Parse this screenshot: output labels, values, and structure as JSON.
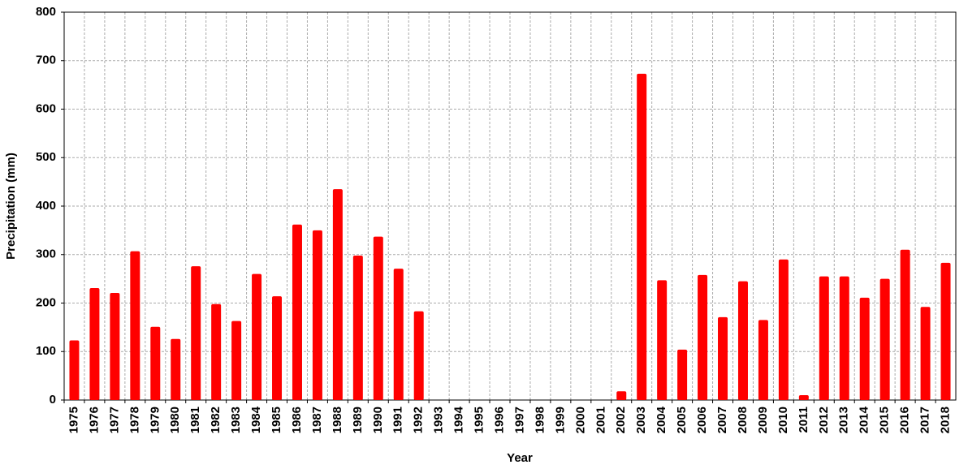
{
  "chart_data": {
    "type": "bar",
    "x_label": "Year",
    "y_label": "Precipitation (mm)",
    "categories": [
      "1975",
      "1976",
      "1977",
      "1978",
      "1979",
      "1980",
      "1981",
      "1982",
      "1983",
      "1984",
      "1985",
      "1986",
      "1987",
      "1988",
      "1989",
      "1990",
      "1991",
      "1992",
      "1993",
      "1994",
      "1995",
      "1996",
      "1997",
      "1998",
      "1999",
      "2000",
      "2001",
      "2002",
      "2003",
      "2004",
      "2005",
      "2006",
      "2007",
      "2008",
      "2009",
      "2010",
      "2011",
      "2012",
      "2013",
      "2014",
      "2015",
      "2016",
      "2017",
      "2018"
    ],
    "values": [
      123,
      231,
      221,
      307,
      151,
      126,
      276,
      198,
      163,
      260,
      214,
      362,
      350,
      435,
      298,
      337,
      271,
      183,
      null,
      null,
      null,
      null,
      null,
      null,
      null,
      null,
      null,
      18,
      673,
      247,
      104,
      258,
      171,
      245,
      165,
      290,
      10,
      255,
      255,
      211,
      250,
      310,
      192,
      283
    ],
    "color": "#ff0000",
    "ylim": [
      0,
      800
    ],
    "yticks": [
      0,
      100,
      200,
      300,
      400,
      500,
      600,
      700,
      800
    ],
    "grid": true
  }
}
